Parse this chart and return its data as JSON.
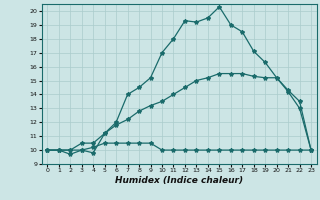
{
  "xlabel": "Humidex (Indice chaleur)",
  "bg_color": "#cce5e5",
  "grid_color": "#aacccc",
  "line_color": "#1a6b6b",
  "xlim": [
    -0.5,
    23.5
  ],
  "ylim": [
    9,
    20.5
  ],
  "yticks": [
    9,
    10,
    11,
    12,
    13,
    14,
    15,
    16,
    17,
    18,
    19,
    20
  ],
  "xticks": [
    0,
    1,
    2,
    3,
    4,
    5,
    6,
    7,
    8,
    9,
    10,
    11,
    12,
    13,
    14,
    15,
    16,
    17,
    18,
    19,
    20,
    21,
    22,
    23
  ],
  "line1_x": [
    0,
    1,
    2,
    3,
    4,
    5,
    6,
    7,
    8,
    9,
    10,
    11,
    12,
    13,
    14,
    15,
    16,
    17,
    18,
    19,
    20,
    21,
    22,
    23
  ],
  "line1_y": [
    10.0,
    10.0,
    9.7,
    10.0,
    9.8,
    11.2,
    12.0,
    14.0,
    14.5,
    15.2,
    17.0,
    18.0,
    19.3,
    19.2,
    19.5,
    20.3,
    19.0,
    18.5,
    17.1,
    16.3,
    15.2,
    14.2,
    13.0,
    10.0
  ],
  "line2_x": [
    0,
    1,
    2,
    3,
    4,
    5,
    6,
    7,
    8,
    9,
    10,
    11,
    12,
    13,
    14,
    15,
    16,
    17,
    18,
    19,
    20,
    21,
    22,
    23
  ],
  "line2_y": [
    10.0,
    10.0,
    10.0,
    10.5,
    10.5,
    11.2,
    11.8,
    12.2,
    12.8,
    13.2,
    13.5,
    14.0,
    14.5,
    15.0,
    15.2,
    15.5,
    15.5,
    15.5,
    15.3,
    15.2,
    15.2,
    14.3,
    13.5,
    10.0
  ],
  "line3_x": [
    0,
    1,
    2,
    3,
    4,
    5,
    6,
    7,
    8,
    9,
    10,
    11,
    12,
    13,
    14,
    15,
    16,
    17,
    18,
    19,
    20,
    21,
    22,
    23
  ],
  "line3_y": [
    10.0,
    10.0,
    10.0,
    10.0,
    10.2,
    10.5,
    10.5,
    10.5,
    10.5,
    10.5,
    10.0,
    10.0,
    10.0,
    10.0,
    10.0,
    10.0,
    10.0,
    10.0,
    10.0,
    10.0,
    10.0,
    10.0,
    10.0,
    10.0
  ],
  "marker": "*",
  "markersize": 3,
  "linewidth": 0.9
}
